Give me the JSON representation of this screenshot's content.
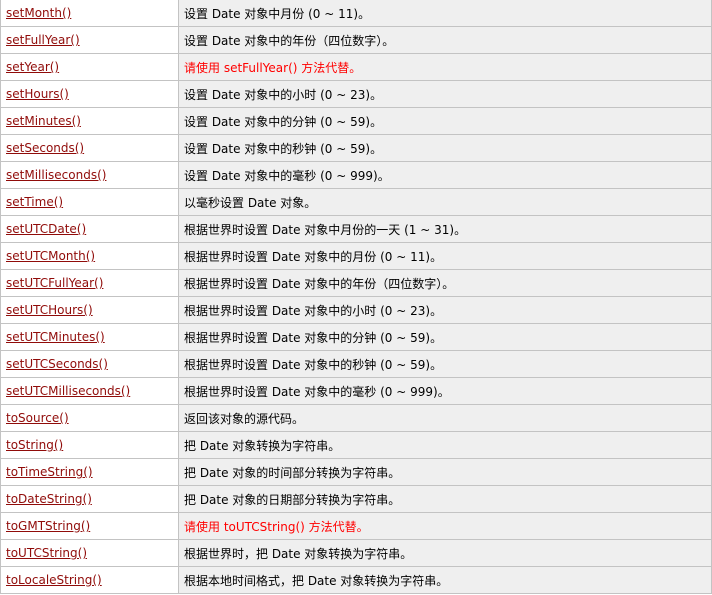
{
  "colors": {
    "link": "#900b09",
    "warning_text": "#ff0000",
    "desc_background": "#efefef",
    "border": "#c3c3c3"
  },
  "rows": [
    {
      "method": "setMonth()",
      "desc": "设置 Date 对象中月份 (0 ~ 11)。",
      "warn": false
    },
    {
      "method": "setFullYear()",
      "desc": "设置 Date 对象中的年份（四位数字）。",
      "warn": false
    },
    {
      "method": "setYear()",
      "desc": "请使用 setFullYear() 方法代替。",
      "warn": true
    },
    {
      "method": "setHours()",
      "desc": "设置 Date 对象中的小时 (0 ~ 23)。",
      "warn": false
    },
    {
      "method": "setMinutes()",
      "desc": "设置 Date 对象中的分钟 (0 ~ 59)。",
      "warn": false
    },
    {
      "method": "setSeconds()",
      "desc": "设置 Date 对象中的秒钟 (0 ~ 59)。",
      "warn": false
    },
    {
      "method": "setMilliseconds()",
      "desc": "设置 Date 对象中的毫秒 (0 ~ 999)。",
      "warn": false
    },
    {
      "method": "setTime()",
      "desc": "以毫秒设置 Date 对象。",
      "warn": false
    },
    {
      "method": "setUTCDate()",
      "desc": "根据世界时设置 Date 对象中月份的一天 (1 ~ 31)。",
      "warn": false
    },
    {
      "method": "setUTCMonth()",
      "desc": "根据世界时设置 Date 对象中的月份 (0 ~ 11)。",
      "warn": false
    },
    {
      "method": "setUTCFullYear()",
      "desc": "根据世界时设置 Date 对象中的年份（四位数字）。",
      "warn": false
    },
    {
      "method": "setUTCHours()",
      "desc": "根据世界时设置 Date 对象中的小时 (0 ~ 23)。",
      "warn": false
    },
    {
      "method": "setUTCMinutes()",
      "desc": "根据世界时设置 Date 对象中的分钟 (0 ~ 59)。",
      "warn": false
    },
    {
      "method": "setUTCSeconds()",
      "desc": "根据世界时设置 Date 对象中的秒钟 (0 ~ 59)。",
      "warn": false
    },
    {
      "method": "setUTCMilliseconds()",
      "desc": "根据世界时设置 Date 对象中的毫秒 (0 ~ 999)。",
      "warn": false
    },
    {
      "method": "toSource()",
      "desc": "返回该对象的源代码。",
      "warn": false
    },
    {
      "method": "toString()",
      "desc": "把 Date 对象转换为字符串。",
      "warn": false
    },
    {
      "method": "toTimeString()",
      "desc": "把 Date 对象的时间部分转换为字符串。",
      "warn": false
    },
    {
      "method": "toDateString()",
      "desc": "把 Date 对象的日期部分转换为字符串。",
      "warn": false
    },
    {
      "method": "toGMTString()",
      "desc": "请使用 toUTCString() 方法代替。",
      "warn": true
    },
    {
      "method": "toUTCString()",
      "desc": "根据世界时，把 Date 对象转换为字符串。",
      "warn": false
    },
    {
      "method": "toLocaleString()",
      "desc": "根据本地时间格式，把 Date 对象转换为字符串。",
      "warn": false
    }
  ]
}
